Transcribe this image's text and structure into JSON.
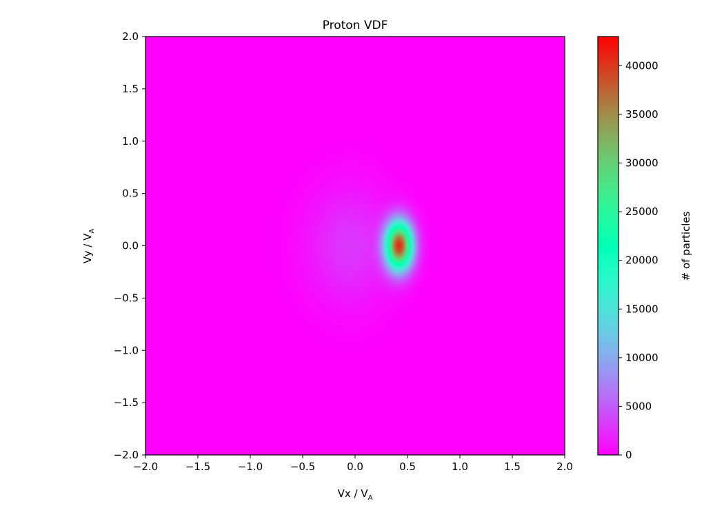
{
  "chart_data": {
    "type": "heatmap",
    "title": "Proton VDF",
    "xlabel": {
      "main": "Vx / V",
      "sub": "A"
    },
    "ylabel": {
      "main": "Vy / V",
      "sub": "A"
    },
    "xlim": [
      -2.0,
      2.0
    ],
    "ylim": [
      -2.0,
      2.0
    ],
    "xticks": [
      -2.0,
      -1.5,
      -1.0,
      -0.5,
      0.0,
      0.5,
      1.0,
      1.5,
      2.0
    ],
    "xtick_labels": [
      "−2.0",
      "−1.5",
      "−1.0",
      "−0.5",
      "0.0",
      "0.5",
      "1.0",
      "1.5",
      "2.0"
    ],
    "yticks": [
      2.0,
      1.5,
      1.0,
      0.5,
      0.0,
      -0.5,
      -1.0,
      -1.5,
      -2.0
    ],
    "ytick_labels": [
      "2.0",
      "1.5",
      "1.0",
      "0.5",
      "0.0",
      "−0.5",
      "−1.0",
      "−1.5",
      "−2.0"
    ],
    "colormap": "rainbow",
    "colorbar": {
      "label": "# of particles",
      "range": [
        0,
        43000
      ],
      "ticks": [
        0,
        5000,
        10000,
        15000,
        20000,
        25000,
        30000,
        35000,
        40000
      ],
      "tick_labels": [
        "0",
        "5000",
        "10000",
        "15000",
        "20000",
        "25000",
        "30000",
        "35000",
        "40000"
      ]
    },
    "components": [
      {
        "vx_center": 0.42,
        "vy_center": 0.0,
        "sigma_vx": 0.09,
        "sigma_vy": 0.16,
        "peak": 40000
      },
      {
        "vx_center": -0.05,
        "vy_center": 0.0,
        "sigma_vx": 0.28,
        "sigma_vy": 0.38,
        "peak": 3000
      }
    ],
    "grid": false,
    "colors": {
      "low": "#8000ff",
      "high": "#ff0000",
      "axis": "#000000"
    }
  }
}
